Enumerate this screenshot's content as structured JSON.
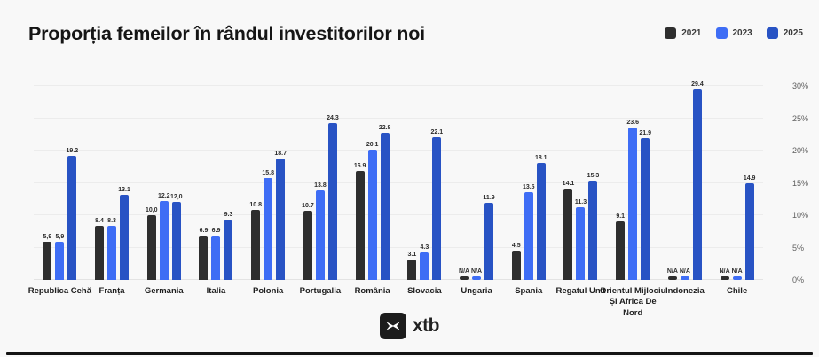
{
  "title": "Proporția femeilor în rândul investitorilor noi",
  "legend": [
    {
      "label": "2021",
      "color": "#2e2e2e"
    },
    {
      "label": "2023",
      "color": "#3e6df5"
    },
    {
      "label": "2025",
      "color": "#2853c4"
    }
  ],
  "chart_data": {
    "type": "bar",
    "title": "Proporția femeilor în rândul investitorilor noi",
    "categories": [
      "Republica Cehă",
      "Franța",
      "Germania",
      "Italia",
      "Polonia",
      "Portugalia",
      "România",
      "Slovacia",
      "Ungaria",
      "Spania",
      "Regatul Unit",
      "Orientul Mijlociu Și Africa De Nord",
      "Indonezia",
      "Chile"
    ],
    "series": [
      {
        "name": "2021",
        "color": "#2e2e2e",
        "values": [
          5.9,
          8.4,
          10.0,
          6.9,
          10.8,
          10.7,
          16.9,
          3.1,
          null,
          4.5,
          14.1,
          9.1,
          null,
          null
        ],
        "labels": [
          "5,9",
          "8.4",
          "10,0",
          "6.9",
          "10.8",
          "10.7",
          "16.9",
          "3.1",
          "N/A",
          "4.5",
          "14.1",
          "9.1",
          "N/A",
          "N/A"
        ]
      },
      {
        "name": "2023",
        "color": "#3e6df5",
        "values": [
          5.9,
          8.3,
          12.2,
          6.9,
          15.8,
          13.8,
          20.1,
          4.3,
          null,
          13.5,
          11.3,
          23.6,
          null,
          null
        ],
        "labels": [
          "5,9",
          "8.3",
          "12.2",
          "6.9",
          "15.8",
          "13.8",
          "20.1",
          "4.3",
          "N/A",
          "13.5",
          "11.3",
          "23.6",
          "N/A",
          "N/A"
        ]
      },
      {
        "name": "2025",
        "color": "#2853c4",
        "values": [
          19.2,
          13.1,
          12.0,
          9.3,
          18.7,
          24.3,
          22.8,
          22.1,
          11.9,
          18.1,
          15.3,
          21.9,
          29.4,
          14.9
        ],
        "labels": [
          "19.2",
          "13.1",
          "12,0",
          "9.3",
          "18.7",
          "24.3",
          "22.8",
          "22.1",
          "11.9",
          "18.1",
          "15.3",
          "21.9",
          "29.4",
          "14.9"
        ]
      }
    ],
    "y_ticks": [
      "0%",
      "5%",
      "10%",
      "15%",
      "20%",
      "25%",
      "30%"
    ],
    "ylim": [
      0,
      30
    ],
    "grid": true,
    "legend_position": "top-right",
    "na_text": "N/A"
  },
  "footer": {
    "logo_text": "xtb"
  }
}
